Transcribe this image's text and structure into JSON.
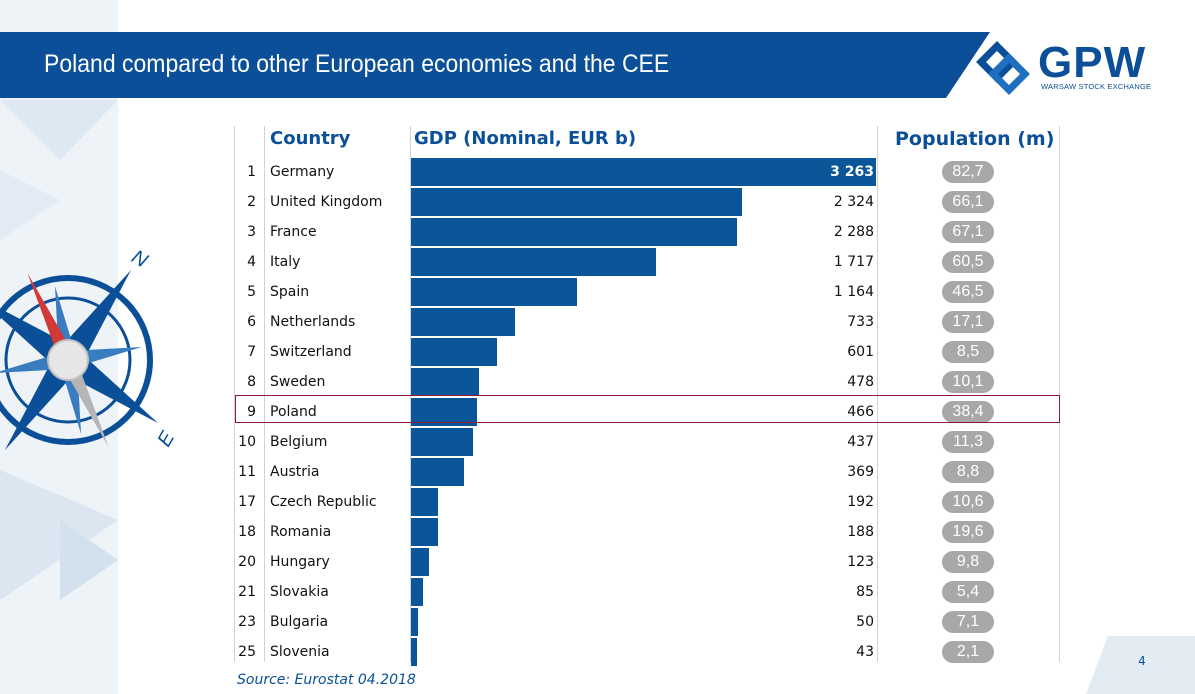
{
  "header": {
    "title": "Poland compared to other European economies and the CEE"
  },
  "logo": {
    "text": "GPW",
    "subtitle": "WARSAW STOCK EXCHANGE"
  },
  "compass": {
    "north": "N",
    "east": "E"
  },
  "columns": {
    "country": "Country",
    "gdp": "GDP (Nominal, EUR b)",
    "population": "Population (m)"
  },
  "footer": {
    "source": "Source: Eurostat 04.2018",
    "page": "4"
  },
  "colors": {
    "brand_blue": "#0a4f97",
    "bar_blue": "#0a5699",
    "highlight": "#8b1d35",
    "pill_gray": "#a8a8a8"
  },
  "chart_data": {
    "type": "bar",
    "orientation": "horizontal",
    "highlight": "Poland",
    "ranks": [
      "1",
      "2",
      "3",
      "4",
      "5",
      "6",
      "7",
      "8",
      "9",
      "10",
      "11",
      "17",
      "18",
      "20",
      "21",
      "23",
      "25"
    ],
    "categories": [
      "Germany",
      "United Kingdom",
      "France",
      "Italy",
      "Spain",
      "Netherlands",
      "Switzerland",
      "Sweden",
      "Poland",
      "Belgium",
      "Austria",
      "Czech Republic",
      "Romania",
      "Hungary",
      "Slovakia",
      "Bulgaria",
      "Slovenia"
    ],
    "values": [
      3263,
      2324,
      2288,
      1717,
      1164,
      733,
      601,
      478,
      466,
      437,
      369,
      192,
      188,
      123,
      85,
      50,
      43
    ],
    "value_labels": [
      "3 263",
      "2 324",
      "2 288",
      "1 717",
      "1 164",
      "733",
      "601",
      "478",
      "466",
      "437",
      "369",
      "192",
      "188",
      "123",
      "85",
      "50",
      "43"
    ],
    "population": [
      "82,7",
      "66,1",
      "67,1",
      "60,5",
      "46,5",
      "17,1",
      "8,5",
      "10,1",
      "38,4",
      "11,3",
      "8,8",
      "10,6",
      "19,6",
      "9,8",
      "5,4",
      "7,1",
      "2,1"
    ],
    "xlim": [
      0,
      3263
    ]
  }
}
